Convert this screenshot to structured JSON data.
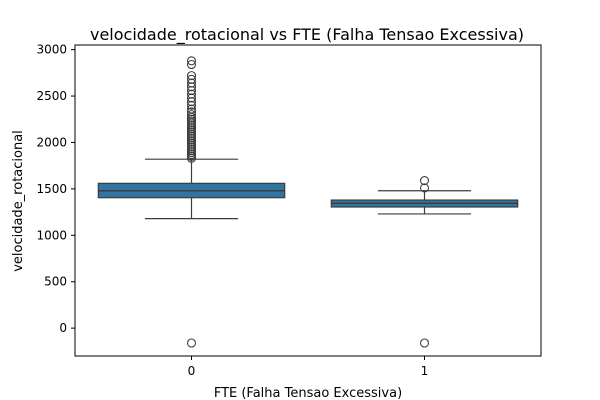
{
  "chart_data": {
    "type": "boxplot",
    "title": "velocidade_rotacional vs FTE (Falha Tensao Excessiva)",
    "xlabel": "FTE (Falha Tensao Excessiva)",
    "ylabel": "velocidade_rotacional",
    "categories": [
      "0",
      "1"
    ],
    "ylim": [
      -300,
      3050
    ],
    "yticks": [
      0,
      500,
      1000,
      1500,
      2000,
      2500,
      3000
    ],
    "grid": false,
    "legend": "none",
    "colors": {
      "box": "#3274a1",
      "line": "#3d3d3d"
    },
    "boxes": [
      {
        "category": "0",
        "whisker_low": 1180,
        "q1": 1405,
        "median": 1480,
        "q3": 1560,
        "whisker_high": 1820,
        "outliers": [
          -160,
          1830,
          1850,
          1870,
          1890,
          1910,
          1930,
          1950,
          1970,
          1990,
          2010,
          2030,
          2050,
          2070,
          2090,
          2110,
          2130,
          2150,
          2170,
          2190,
          2210,
          2230,
          2250,
          2270,
          2300,
          2330,
          2360,
          2400,
          2440,
          2480,
          2520,
          2560,
          2600,
          2640,
          2680,
          2720,
          2840,
          2880
        ]
      },
      {
        "category": "1",
        "whisker_low": 1230,
        "q1": 1305,
        "median": 1345,
        "q3": 1380,
        "whisker_high": 1480,
        "outliers": [
          -160,
          1510,
          1590
        ]
      }
    ]
  }
}
